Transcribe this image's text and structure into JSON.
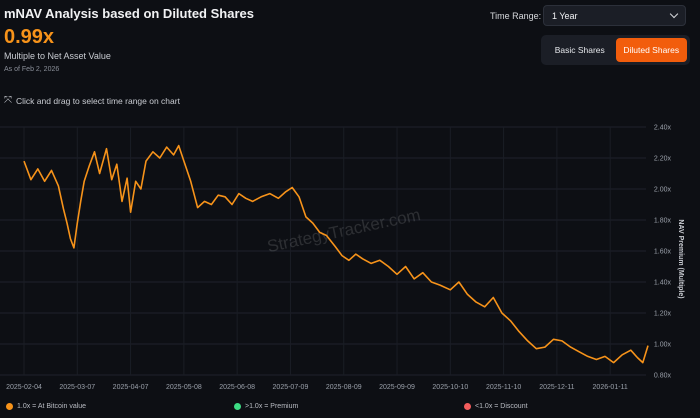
{
  "header": {
    "title": "mNAV Analysis based on Diluted Shares",
    "value": "0.99x",
    "subtitle": "Multiple to Net Asset Value",
    "as_of": "As of Feb 2, 2026"
  },
  "controls": {
    "time_range_label": "Time Range:",
    "time_range_value": "1 Year",
    "basic_label": "Basic Shares",
    "diluted_label": "Diluted Shares",
    "active": "diluted"
  },
  "hint": "Click and drag to select time range on chart",
  "watermark": "StrategyTracker.com",
  "legend": [
    {
      "label": "1.0x = At Bitcoin value",
      "color": "#f7931a"
    },
    {
      "label": ">1.0x = Premium",
      "color": "#3ddc84"
    },
    {
      "label": "<1.0x = Discount",
      "color": "#f25c5c"
    }
  ],
  "colors": {
    "line": "#f7931a",
    "accent": "#f25d0c",
    "background": "#0d0f14"
  },
  "chart_data": {
    "type": "line",
    "ylabel": "NAV Premium (Multiple)",
    "ylim": [
      0.8,
      2.4
    ],
    "y_ticks": [
      "2.40x",
      "2.20x",
      "2.00x",
      "1.80x",
      "1.60x",
      "1.40x",
      "1.20x",
      "1.00x",
      "0.80x"
    ],
    "x_ticks": [
      "2025-02-04",
      "2025-03-07",
      "2025-04-07",
      "2025-05-08",
      "2025-06-08",
      "2025-07-09",
      "2025-08-09",
      "2025-09-09",
      "2025-10-10",
      "2025-11-10",
      "2025-12-11",
      "2026-01-11"
    ],
    "x_range": [
      "2025-02-04",
      "2026-02-02"
    ],
    "grid": true,
    "series": [
      {
        "x": [
          "2025-02-04",
          "2025-02-08",
          "2025-02-12",
          "2025-02-16",
          "2025-02-20",
          "2025-02-24",
          "2025-02-27",
          "2025-03-01",
          "2025-03-03",
          "2025-03-05",
          "2025-03-07",
          "2025-03-09",
          "2025-03-11",
          "2025-03-14",
          "2025-03-17",
          "2025-03-20",
          "2025-03-24",
          "2025-03-27",
          "2025-03-30",
          "2025-04-02",
          "2025-04-05",
          "2025-04-07",
          "2025-04-10",
          "2025-04-13",
          "2025-04-16",
          "2025-04-20",
          "2025-04-24",
          "2025-04-28",
          "2025-05-02",
          "2025-05-05",
          "2025-05-08",
          "2025-05-12",
          "2025-05-16",
          "2025-05-20",
          "2025-05-24",
          "2025-05-28",
          "2025-06-01",
          "2025-06-05",
          "2025-06-09",
          "2025-06-13",
          "2025-06-17",
          "2025-06-22",
          "2025-06-27",
          "2025-07-02",
          "2025-07-06",
          "2025-07-10",
          "2025-07-14",
          "2025-07-18",
          "2025-07-22",
          "2025-07-26",
          "2025-07-30",
          "2025-08-04",
          "2025-08-08",
          "2025-08-12",
          "2025-08-16",
          "2025-08-20",
          "2025-08-25",
          "2025-08-30",
          "2025-09-04",
          "2025-09-09",
          "2025-09-14",
          "2025-09-19",
          "2025-09-24",
          "2025-09-29",
          "2025-10-04",
          "2025-10-10",
          "2025-10-15",
          "2025-10-20",
          "2025-10-25",
          "2025-10-30",
          "2025-11-04",
          "2025-11-09",
          "2025-11-14",
          "2025-11-19",
          "2025-11-24",
          "2025-11-29",
          "2025-12-04",
          "2025-12-09",
          "2025-12-14",
          "2025-12-19",
          "2025-12-24",
          "2025-12-29",
          "2026-01-03",
          "2026-01-08",
          "2026-01-13",
          "2026-01-18",
          "2026-01-23",
          "2026-01-27",
          "2026-01-30",
          "2026-02-02"
        ],
        "y": [
          2.18,
          2.06,
          2.13,
          2.05,
          2.12,
          2.02,
          1.87,
          1.78,
          1.68,
          1.62,
          1.78,
          1.92,
          2.05,
          2.15,
          2.24,
          2.1,
          2.26,
          2.06,
          2.16,
          1.92,
          2.07,
          1.85,
          2.05,
          2.0,
          2.18,
          2.24,
          2.2,
          2.27,
          2.22,
          2.28,
          2.18,
          2.05,
          1.88,
          1.92,
          1.9,
          1.96,
          1.95,
          1.9,
          1.97,
          1.94,
          1.92,
          1.95,
          1.97,
          1.94,
          1.98,
          2.01,
          1.95,
          1.82,
          1.78,
          1.72,
          1.7,
          1.63,
          1.57,
          1.54,
          1.58,
          1.55,
          1.52,
          1.54,
          1.5,
          1.45,
          1.5,
          1.42,
          1.46,
          1.4,
          1.38,
          1.35,
          1.4,
          1.32,
          1.27,
          1.24,
          1.3,
          1.2,
          1.15,
          1.08,
          1.02,
          0.97,
          0.98,
          1.03,
          1.02,
          0.98,
          0.95,
          0.92,
          0.9,
          0.92,
          0.88,
          0.93,
          0.96,
          0.91,
          0.88,
          0.99
        ]
      }
    ]
  }
}
